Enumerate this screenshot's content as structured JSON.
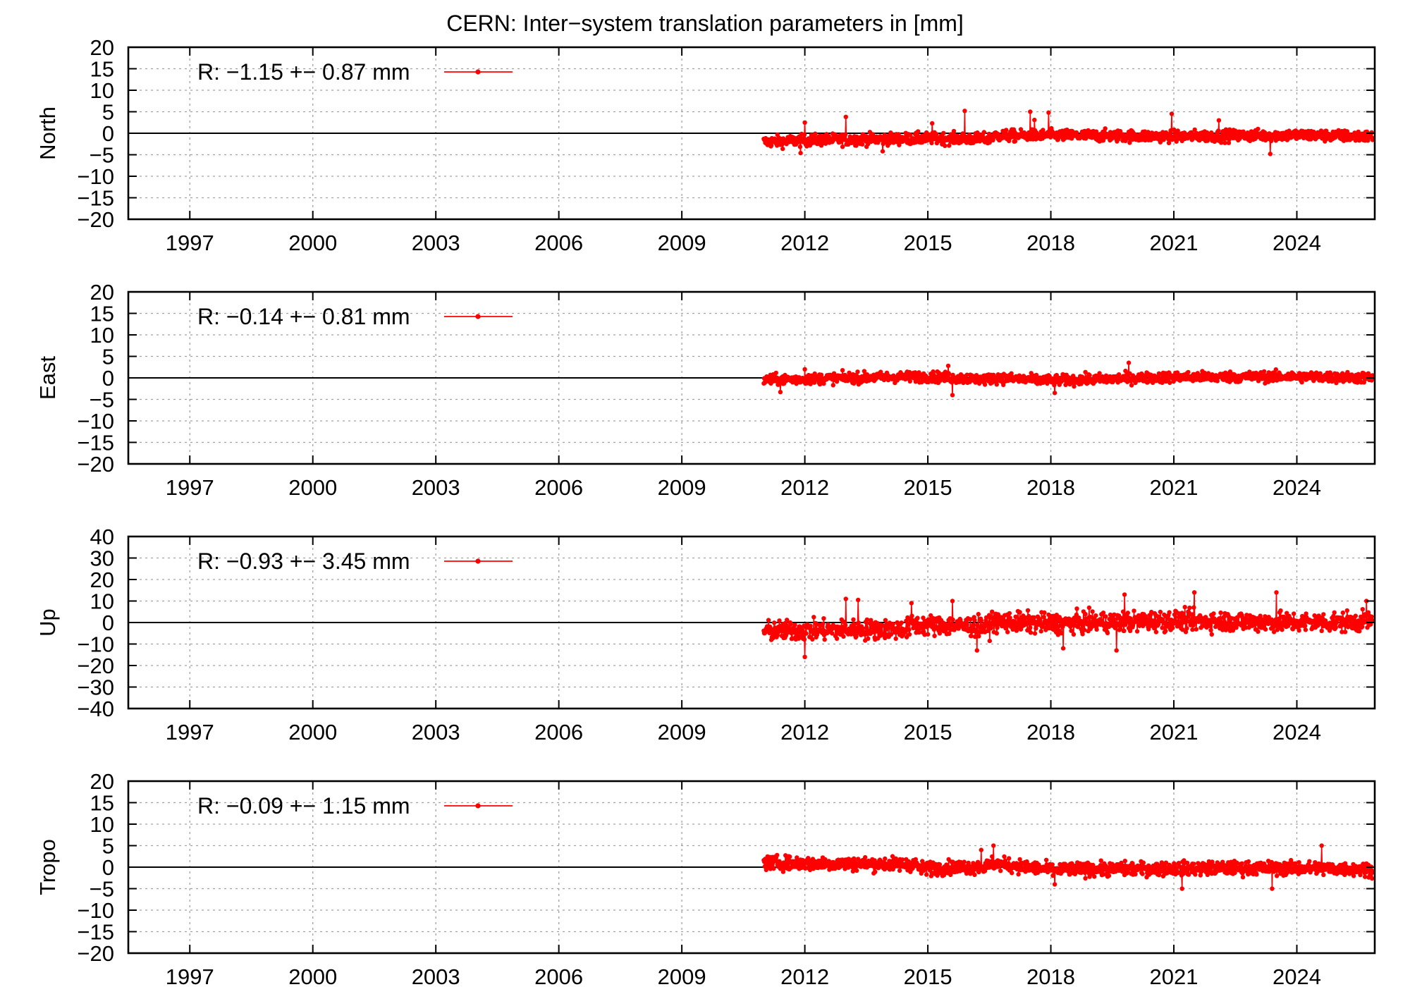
{
  "title": "CERN: Inter−system translation parameters in [mm]",
  "chart_data": [
    {
      "type": "line",
      "ylabel": "North",
      "xlabel": "",
      "xlim": [
        1995.5,
        2025.9
      ],
      "ylim": [
        -20,
        20
      ],
      "x_ticks": [
        1997,
        2000,
        2003,
        2006,
        2009,
        2012,
        2015,
        2018,
        2021,
        2024
      ],
      "x_tick_labels": [
        "1997",
        "2000",
        "2003",
        "2006",
        "2009",
        "2012",
        "2015",
        "2018",
        "2021",
        "2024"
      ],
      "y_ticks": [
        -20,
        -15,
        -10,
        -5,
        0,
        5,
        10,
        15,
        20
      ],
      "y_tick_labels": [
        "−20",
        "−15",
        "−10",
        "−5",
        "0",
        "5",
        "10",
        "15",
        "20"
      ],
      "grid": true,
      "legend_position": "top-left",
      "series": [
        {
          "name": "R:  −1.15 +− 0.87 mm",
          "color": "#ff0000",
          "x_start": 2011.0,
          "x_end": 2025.85,
          "trend": [
            [
              2011.0,
              -2.0
            ],
            [
              2012.5,
              -1.5
            ],
            [
              2015.0,
              -1.2
            ],
            [
              2016.5,
              -1.3
            ],
            [
              2016.55,
              -0.6
            ],
            [
              2018.0,
              -0.5
            ],
            [
              2021.0,
              -0.7
            ],
            [
              2024.0,
              -0.4
            ],
            [
              2025.85,
              -0.8
            ]
          ],
          "scatter": 1.1,
          "spikes": [
            [
              2012.0,
              2.5
            ],
            [
              2013.0,
              3.8
            ],
            [
              2015.1,
              2.3
            ],
            [
              2015.9,
              5.2
            ],
            [
              2017.5,
              5.0
            ],
            [
              2017.6,
              3.1
            ],
            [
              2017.95,
              4.8
            ],
            [
              2020.95,
              4.5
            ],
            [
              2022.1,
              3.0
            ],
            [
              2011.9,
              -4.6
            ],
            [
              2013.9,
              -4.2
            ],
            [
              2023.35,
              -4.8
            ]
          ]
        }
      ]
    },
    {
      "type": "line",
      "ylabel": "East",
      "xlabel": "",
      "xlim": [
        1995.5,
        2025.9
      ],
      "ylim": [
        -20,
        20
      ],
      "x_ticks": [
        1997,
        2000,
        2003,
        2006,
        2009,
        2012,
        2015,
        2018,
        2021,
        2024
      ],
      "x_tick_labels": [
        "1997",
        "2000",
        "2003",
        "2006",
        "2009",
        "2012",
        "2015",
        "2018",
        "2021",
        "2024"
      ],
      "y_ticks": [
        -20,
        -15,
        -10,
        -5,
        0,
        5,
        10,
        15,
        20
      ],
      "y_tick_labels": [
        "−20",
        "−15",
        "−10",
        "−5",
        "0",
        "5",
        "10",
        "15",
        "20"
      ],
      "grid": true,
      "legend_position": "top-left",
      "series": [
        {
          "name": "R:  −0.14 +− 0.81 mm",
          "color": "#ff0000",
          "x_start": 2011.0,
          "x_end": 2025.85,
          "trend": [
            [
              2011.0,
              -0.5
            ],
            [
              2013.0,
              0.0
            ],
            [
              2015.0,
              0.3
            ],
            [
              2016.5,
              -0.4
            ],
            [
              2016.55,
              0.0
            ],
            [
              2018.0,
              -0.6
            ],
            [
              2021.0,
              0.2
            ],
            [
              2024.0,
              0.3
            ],
            [
              2025.85,
              0.0
            ]
          ],
          "scatter": 1.0,
          "spikes": [
            [
              2019.9,
              3.5
            ],
            [
              2015.5,
              2.8
            ],
            [
              2012.0,
              2.0
            ],
            [
              2011.4,
              -3.3
            ],
            [
              2015.6,
              -4.0
            ],
            [
              2018.1,
              -3.5
            ]
          ]
        }
      ]
    },
    {
      "type": "line",
      "ylabel": "Up",
      "xlabel": "",
      "xlim": [
        1995.5,
        2025.9
      ],
      "ylim": [
        -40,
        40
      ],
      "x_ticks": [
        1997,
        2000,
        2003,
        2006,
        2009,
        2012,
        2015,
        2018,
        2021,
        2024
      ],
      "x_tick_labels": [
        "1997",
        "2000",
        "2003",
        "2006",
        "2009",
        "2012",
        "2015",
        "2018",
        "2021",
        "2024"
      ],
      "y_ticks": [
        -40,
        -30,
        -20,
        -10,
        0,
        10,
        20,
        30,
        40
      ],
      "y_tick_labels": [
        "−40",
        "−30",
        "−20",
        "−10",
        "0",
        "10",
        "20",
        "30",
        "40"
      ],
      "grid": true,
      "legend_position": "top-left",
      "series": [
        {
          "name": "R:  −0.93 +− 3.45 mm",
          "color": "#ff0000",
          "x_start": 2011.0,
          "x_end": 2025.85,
          "trend": [
            [
              2011.0,
              -4.0
            ],
            [
              2012.5,
              -3.5
            ],
            [
              2014.5,
              -3.0
            ],
            [
              2014.6,
              -1.0
            ],
            [
              2016.5,
              -2.0
            ],
            [
              2016.55,
              0.5
            ],
            [
              2018.0,
              -0.5
            ],
            [
              2021.0,
              1.0
            ],
            [
              2024.0,
              0.0
            ],
            [
              2025.85,
              0.5
            ]
          ],
          "scatter": 3.8,
          "spikes": [
            [
              2013.0,
              11.0
            ],
            [
              2013.3,
              10.5
            ],
            [
              2014.6,
              9.0
            ],
            [
              2015.6,
              10.0
            ],
            [
              2019.8,
              13.0
            ],
            [
              2021.5,
              14.0
            ],
            [
              2023.5,
              14.0
            ],
            [
              2025.7,
              10.0
            ],
            [
              2012.0,
              -16.0
            ],
            [
              2016.2,
              -13.0
            ],
            [
              2018.3,
              -12.0
            ],
            [
              2019.6,
              -13.0
            ]
          ]
        }
      ]
    },
    {
      "type": "line",
      "ylabel": "Tropo",
      "xlabel": "",
      "xlim": [
        1995.5,
        2025.9
      ],
      "ylim": [
        -20,
        20
      ],
      "x_ticks": [
        1997,
        2000,
        2003,
        2006,
        2009,
        2012,
        2015,
        2018,
        2021,
        2024
      ],
      "x_tick_labels": [
        "1997",
        "2000",
        "2003",
        "2006",
        "2009",
        "2012",
        "2015",
        "2018",
        "2021",
        "2024"
      ],
      "y_ticks": [
        -20,
        -15,
        -10,
        -5,
        0,
        5,
        10,
        15,
        20
      ],
      "y_tick_labels": [
        "−20",
        "−15",
        "−10",
        "−5",
        "0",
        "5",
        "10",
        "15",
        "20"
      ],
      "grid": true,
      "legend_position": "top-left",
      "series": [
        {
          "name": "R:  −0.09 +− 1.15 mm",
          "color": "#ff0000",
          "x_start": 2011.0,
          "x_end": 2025.85,
          "trend": [
            [
              2011.0,
              1.0
            ],
            [
              2013.0,
              0.8
            ],
            [
              2014.7,
              0.7
            ],
            [
              2014.8,
              -0.3
            ],
            [
              2016.5,
              0.2
            ],
            [
              2016.55,
              0.9
            ],
            [
              2018.0,
              -0.6
            ],
            [
              2021.0,
              -0.3
            ],
            [
              2024.0,
              -0.2
            ],
            [
              2025.85,
              -0.5
            ]
          ],
          "scatter": 1.3,
          "spikes": [
            [
              2016.6,
              5.0
            ],
            [
              2024.6,
              5.0
            ],
            [
              2016.3,
              4.0
            ],
            [
              2021.2,
              -5.0
            ],
            [
              2023.4,
              -5.0
            ],
            [
              2018.1,
              -4.0
            ]
          ]
        }
      ]
    }
  ]
}
